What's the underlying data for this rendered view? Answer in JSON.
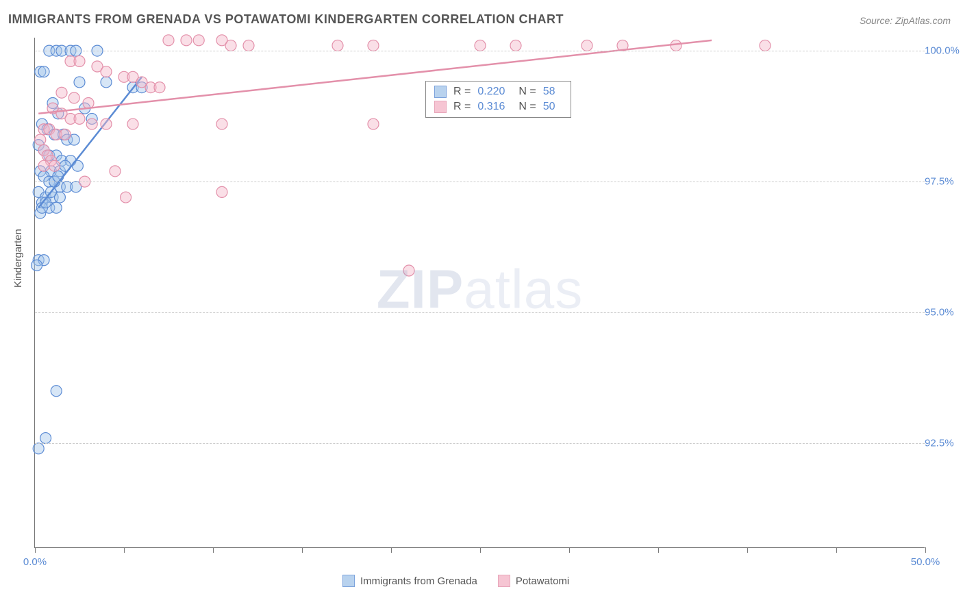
{
  "title": "IMMIGRANTS FROM GRENADA VS POTAWATOMI KINDERGARTEN CORRELATION CHART",
  "source": "Source: ZipAtlas.com",
  "ylabel": "Kindergarten",
  "watermark_bold": "ZIP",
  "watermark_light": "atlas",
  "series": {
    "a": {
      "label": "Immigrants from Grenada",
      "fill": "#a7c7ea",
      "stroke": "#5b8bd4",
      "fill_opacity": 0.45,
      "r": "0.220",
      "n": "58",
      "trend": {
        "x1": 0.2,
        "y1": 97.0,
        "x2": 6.0,
        "y2": 99.5
      },
      "points": [
        [
          0.8,
          100.0
        ],
        [
          1.2,
          100.0
        ],
        [
          1.5,
          100.0
        ],
        [
          2.0,
          100.0
        ],
        [
          2.3,
          100.0
        ],
        [
          3.5,
          100.0
        ],
        [
          0.3,
          99.6
        ],
        [
          0.5,
          99.6
        ],
        [
          2.5,
          99.4
        ],
        [
          4.0,
          99.4
        ],
        [
          5.5,
          99.3
        ],
        [
          6.0,
          99.3
        ],
        [
          1.0,
          99.0
        ],
        [
          1.3,
          98.8
        ],
        [
          2.8,
          98.9
        ],
        [
          3.2,
          98.7
        ],
        [
          0.4,
          98.6
        ],
        [
          0.7,
          98.5
        ],
        [
          1.1,
          98.4
        ],
        [
          1.6,
          98.4
        ],
        [
          1.8,
          98.3
        ],
        [
          2.2,
          98.3
        ],
        [
          0.2,
          98.2
        ],
        [
          0.5,
          98.1
        ],
        [
          0.8,
          98.0
        ],
        [
          1.2,
          98.0
        ],
        [
          1.5,
          97.9
        ],
        [
          2.0,
          97.9
        ],
        [
          2.4,
          97.8
        ],
        [
          0.3,
          97.7
        ],
        [
          0.9,
          97.7
        ],
        [
          1.4,
          97.7
        ],
        [
          0.5,
          97.6
        ],
        [
          0.8,
          97.5
        ],
        [
          1.1,
          97.5
        ],
        [
          1.4,
          97.4
        ],
        [
          1.8,
          97.4
        ],
        [
          2.3,
          97.4
        ],
        [
          0.2,
          97.3
        ],
        [
          0.6,
          97.2
        ],
        [
          1.0,
          97.2
        ],
        [
          1.4,
          97.2
        ],
        [
          0.4,
          97.1
        ],
        [
          0.8,
          97.0
        ],
        [
          1.2,
          97.0
        ],
        [
          0.3,
          96.9
        ],
        [
          0.2,
          96.0
        ],
        [
          0.5,
          96.0
        ],
        [
          0.1,
          95.9
        ],
        [
          1.2,
          93.5
        ],
        [
          0.6,
          92.6
        ],
        [
          0.2,
          92.4
        ],
        [
          0.4,
          97.0
        ],
        [
          0.6,
          97.1
        ],
        [
          0.9,
          97.3
        ],
        [
          1.1,
          97.5
        ],
        [
          1.3,
          97.6
        ],
        [
          1.7,
          97.8
        ]
      ]
    },
    "b": {
      "label": "Potawatomi",
      "fill": "#f5b7c9",
      "stroke": "#e390aa",
      "fill_opacity": 0.45,
      "r": "0.316",
      "n": "50",
      "trend": {
        "x1": 0.2,
        "y1": 98.8,
        "x2": 38.0,
        "y2": 100.2
      },
      "points": [
        [
          7.5,
          100.2
        ],
        [
          8.5,
          100.2
        ],
        [
          9.2,
          100.2
        ],
        [
          10.5,
          100.2
        ],
        [
          11.0,
          100.1
        ],
        [
          12.0,
          100.1
        ],
        [
          17.0,
          100.1
        ],
        [
          19.0,
          100.1
        ],
        [
          25.0,
          100.1
        ],
        [
          27.0,
          100.1
        ],
        [
          31.0,
          100.1
        ],
        [
          33.0,
          100.1
        ],
        [
          36.0,
          100.1
        ],
        [
          41.0,
          100.1
        ],
        [
          2.0,
          99.8
        ],
        [
          2.5,
          99.8
        ],
        [
          3.5,
          99.7
        ],
        [
          4.0,
          99.6
        ],
        [
          5.0,
          99.5
        ],
        [
          5.5,
          99.5
        ],
        [
          6.0,
          99.4
        ],
        [
          6.5,
          99.3
        ],
        [
          7.0,
          99.3
        ],
        [
          1.5,
          99.2
        ],
        [
          2.2,
          99.1
        ],
        [
          3.0,
          99.0
        ],
        [
          1.0,
          98.9
        ],
        [
          1.5,
          98.8
        ],
        [
          2.0,
          98.7
        ],
        [
          2.5,
          98.7
        ],
        [
          3.2,
          98.6
        ],
        [
          4.0,
          98.6
        ],
        [
          5.5,
          98.6
        ],
        [
          10.5,
          98.6
        ],
        [
          19.0,
          98.6
        ],
        [
          0.5,
          98.5
        ],
        [
          0.8,
          98.5
        ],
        [
          1.2,
          98.4
        ],
        [
          1.7,
          98.4
        ],
        [
          0.5,
          98.1
        ],
        [
          0.7,
          98.0
        ],
        [
          0.9,
          97.9
        ],
        [
          1.1,
          97.8
        ],
        [
          0.5,
          97.8
        ],
        [
          4.5,
          97.7
        ],
        [
          2.8,
          97.5
        ],
        [
          5.1,
          97.2
        ],
        [
          10.5,
          97.3
        ],
        [
          21.0,
          95.8
        ],
        [
          0.3,
          98.3
        ]
      ]
    }
  },
  "axes": {
    "xlim": [
      0,
      50
    ],
    "ylim": [
      90.5,
      100.25
    ],
    "xticks": [
      0,
      5,
      10,
      15,
      20,
      25,
      30,
      35,
      40,
      45,
      50
    ],
    "xtick_labels": {
      "0": "0.0%",
      "50": "50.0%"
    },
    "yticks": [
      92.5,
      95.0,
      97.5,
      100.0
    ],
    "ytick_labels": [
      "92.5%",
      "95.0%",
      "97.5%",
      "100.0%"
    ],
    "grid_color": "#cccccc"
  },
  "marker_radius": 8,
  "plot_bg": "#ffffff"
}
